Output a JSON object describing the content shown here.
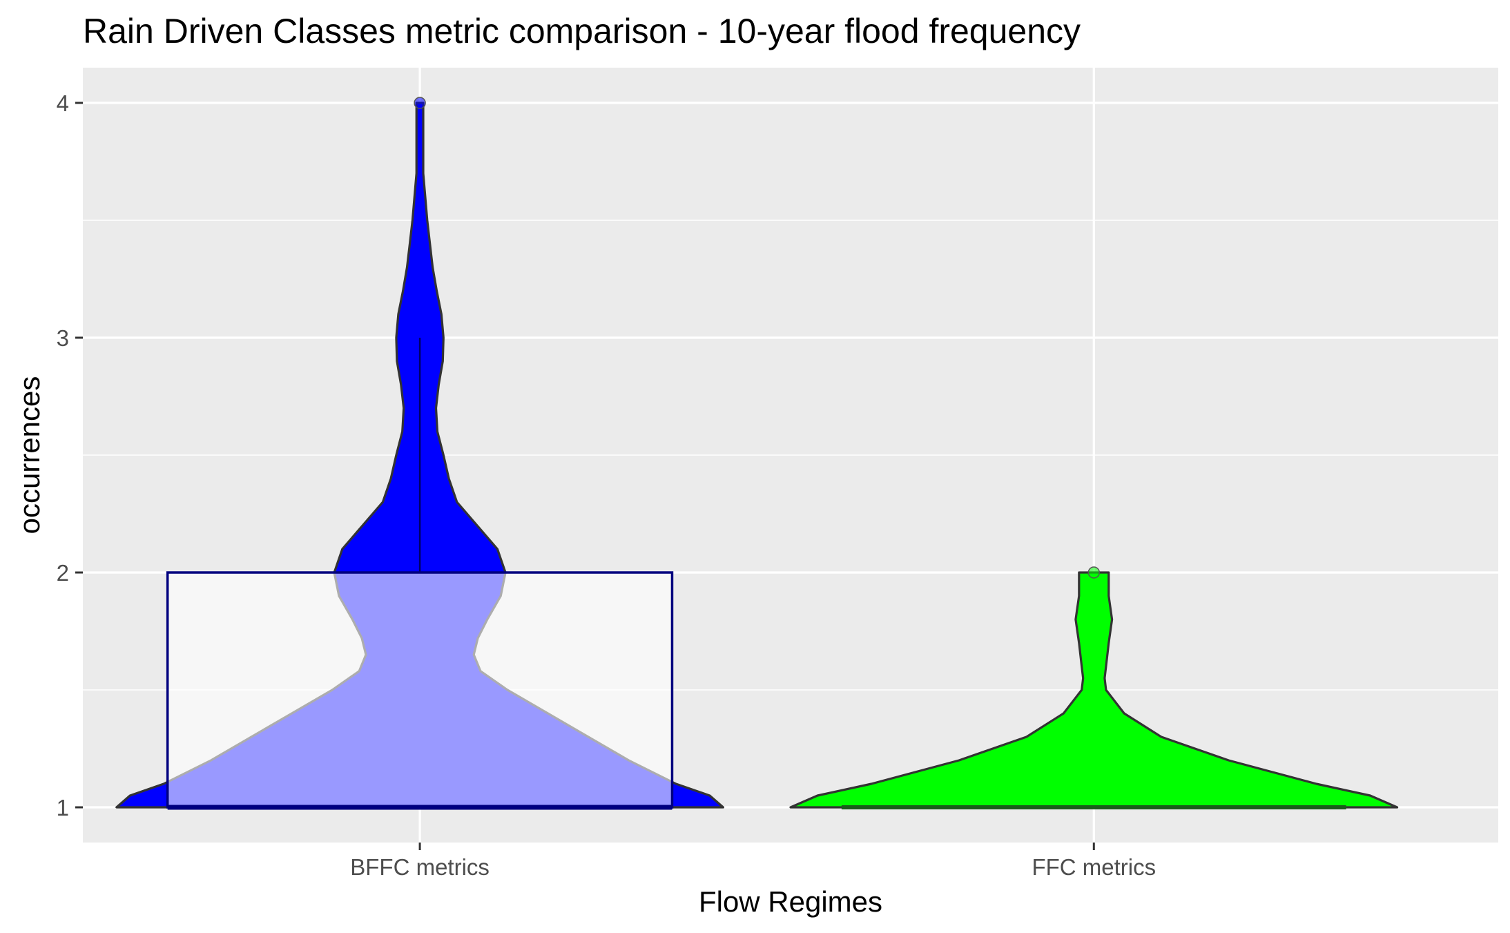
{
  "chart_data": {
    "type": "violin",
    "title": "Rain Driven Classes metric comparison - 10-year flood frequency",
    "xlabel": "Flow Regimes",
    "ylabel": "occurrences",
    "categories": [
      "BFFC metrics",
      "FFC metrics"
    ],
    "yticks": [
      1,
      2,
      3,
      4
    ],
    "ylim": [
      0.85,
      4.15
    ],
    "grid": true,
    "legend": "none",
    "colors": {
      "panel": "#ebebeb",
      "grid": "#ffffff",
      "outline": "#333333",
      "box_outline": "#00007f",
      "box_fill": "#ffffff",
      "BFFC metrics": "#0000ff",
      "FFC metrics": "#00ff00"
    },
    "violins": [
      {
        "category": "BFFC metrics",
        "fill": "#0000ff",
        "max_half_width": 0.45,
        "density_profile": [
          [
            1.0,
            0.45
          ],
          [
            1.05,
            0.43
          ],
          [
            1.1,
            0.38
          ],
          [
            1.2,
            0.31
          ],
          [
            1.3,
            0.25
          ],
          [
            1.4,
            0.19
          ],
          [
            1.5,
            0.13
          ],
          [
            1.58,
            0.09
          ],
          [
            1.65,
            0.08
          ],
          [
            1.72,
            0.086
          ],
          [
            1.8,
            0.1
          ],
          [
            1.9,
            0.12
          ],
          [
            2.0,
            0.127
          ],
          [
            2.1,
            0.115
          ],
          [
            2.2,
            0.085
          ],
          [
            2.3,
            0.055
          ],
          [
            2.4,
            0.043
          ],
          [
            2.5,
            0.035
          ],
          [
            2.6,
            0.026
          ],
          [
            2.7,
            0.024
          ],
          [
            2.8,
            0.028
          ],
          [
            2.9,
            0.034
          ],
          [
            3.0,
            0.035
          ],
          [
            3.1,
            0.032
          ],
          [
            3.2,
            0.025
          ],
          [
            3.3,
            0.019
          ],
          [
            3.4,
            0.015
          ],
          [
            3.5,
            0.011
          ],
          [
            3.6,
            0.008
          ],
          [
            3.7,
            0.005
          ],
          [
            3.8,
            0.005
          ],
          [
            3.9,
            0.005
          ],
          [
            4.0,
            0.005
          ]
        ]
      },
      {
        "category": "FFC metrics",
        "fill": "#00ff00",
        "max_half_width": 0.45,
        "density_profile": [
          [
            1.0,
            0.45
          ],
          [
            1.05,
            0.41
          ],
          [
            1.1,
            0.33
          ],
          [
            1.2,
            0.2
          ],
          [
            1.3,
            0.1
          ],
          [
            1.4,
            0.045
          ],
          [
            1.5,
            0.018
          ],
          [
            1.55,
            0.016
          ],
          [
            1.6,
            0.018
          ],
          [
            1.7,
            0.022
          ],
          [
            1.8,
            0.027
          ],
          [
            1.9,
            0.022
          ],
          [
            2.0,
            0.022
          ]
        ]
      }
    ],
    "boxplots": [
      {
        "category": "BFFC metrics",
        "q1": 1,
        "median": 1,
        "q3": 2,
        "whisker_low": 1,
        "whisker_high": 3,
        "outliers": [
          4
        ]
      },
      {
        "category": "FFC metrics",
        "q1": 1,
        "median": 1,
        "q3": 1,
        "whisker_low": 1,
        "whisker_high": 1,
        "outliers": [
          2
        ]
      }
    ]
  }
}
